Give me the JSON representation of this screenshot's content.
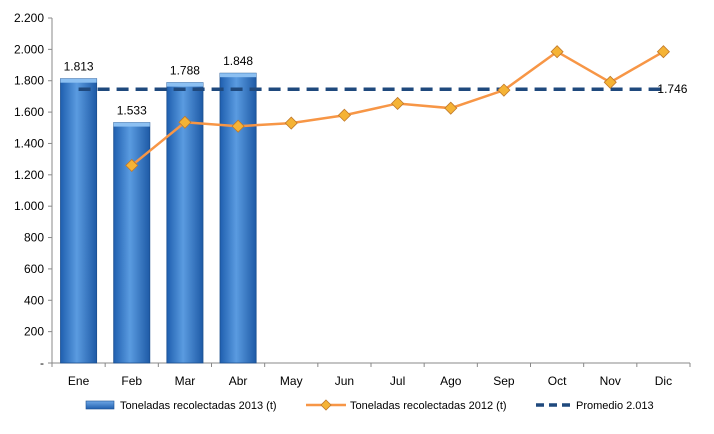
{
  "chart_data": {
    "type": "bar",
    "categories": [
      "Ene",
      "Feb",
      "Mar",
      "Abr",
      "May",
      "Jun",
      "Jul",
      "Ago",
      "Sep",
      "Oct",
      "Nov",
      "Dic"
    ],
    "y_ticks": [
      "-",
      "200",
      "400",
      "600",
      "800",
      "1.000",
      "1.200",
      "1.400",
      "1.600",
      "1.800",
      "2.000",
      "2.200"
    ],
    "ylim": [
      0,
      2200
    ],
    "grid": false,
    "legend_position": "bottom",
    "title": "",
    "xlabel": "",
    "ylabel": "",
    "series": [
      {
        "name": "Toneladas recolectadas 2013 (t)",
        "type": "bar",
        "color": "#3C7FCF",
        "values": [
          1813,
          1533,
          1788,
          1848,
          null,
          null,
          null,
          null,
          null,
          null,
          null,
          null
        ],
        "labels": [
          "1.813",
          "1.533",
          "1.788",
          "1.848"
        ]
      },
      {
        "name": "Toneladas recolectadas 2012 (t)",
        "type": "line",
        "color": "#F79646",
        "marker_color": "#F5B335",
        "values": [
          null,
          1260,
          1535,
          1510,
          1530,
          1580,
          1655,
          1625,
          1740,
          1985,
          1790,
          1985
        ]
      },
      {
        "name": "Promedio 2.013",
        "type": "dashed-line",
        "color": "#1F497D",
        "value": 1746,
        "label": "1.746"
      }
    ]
  }
}
